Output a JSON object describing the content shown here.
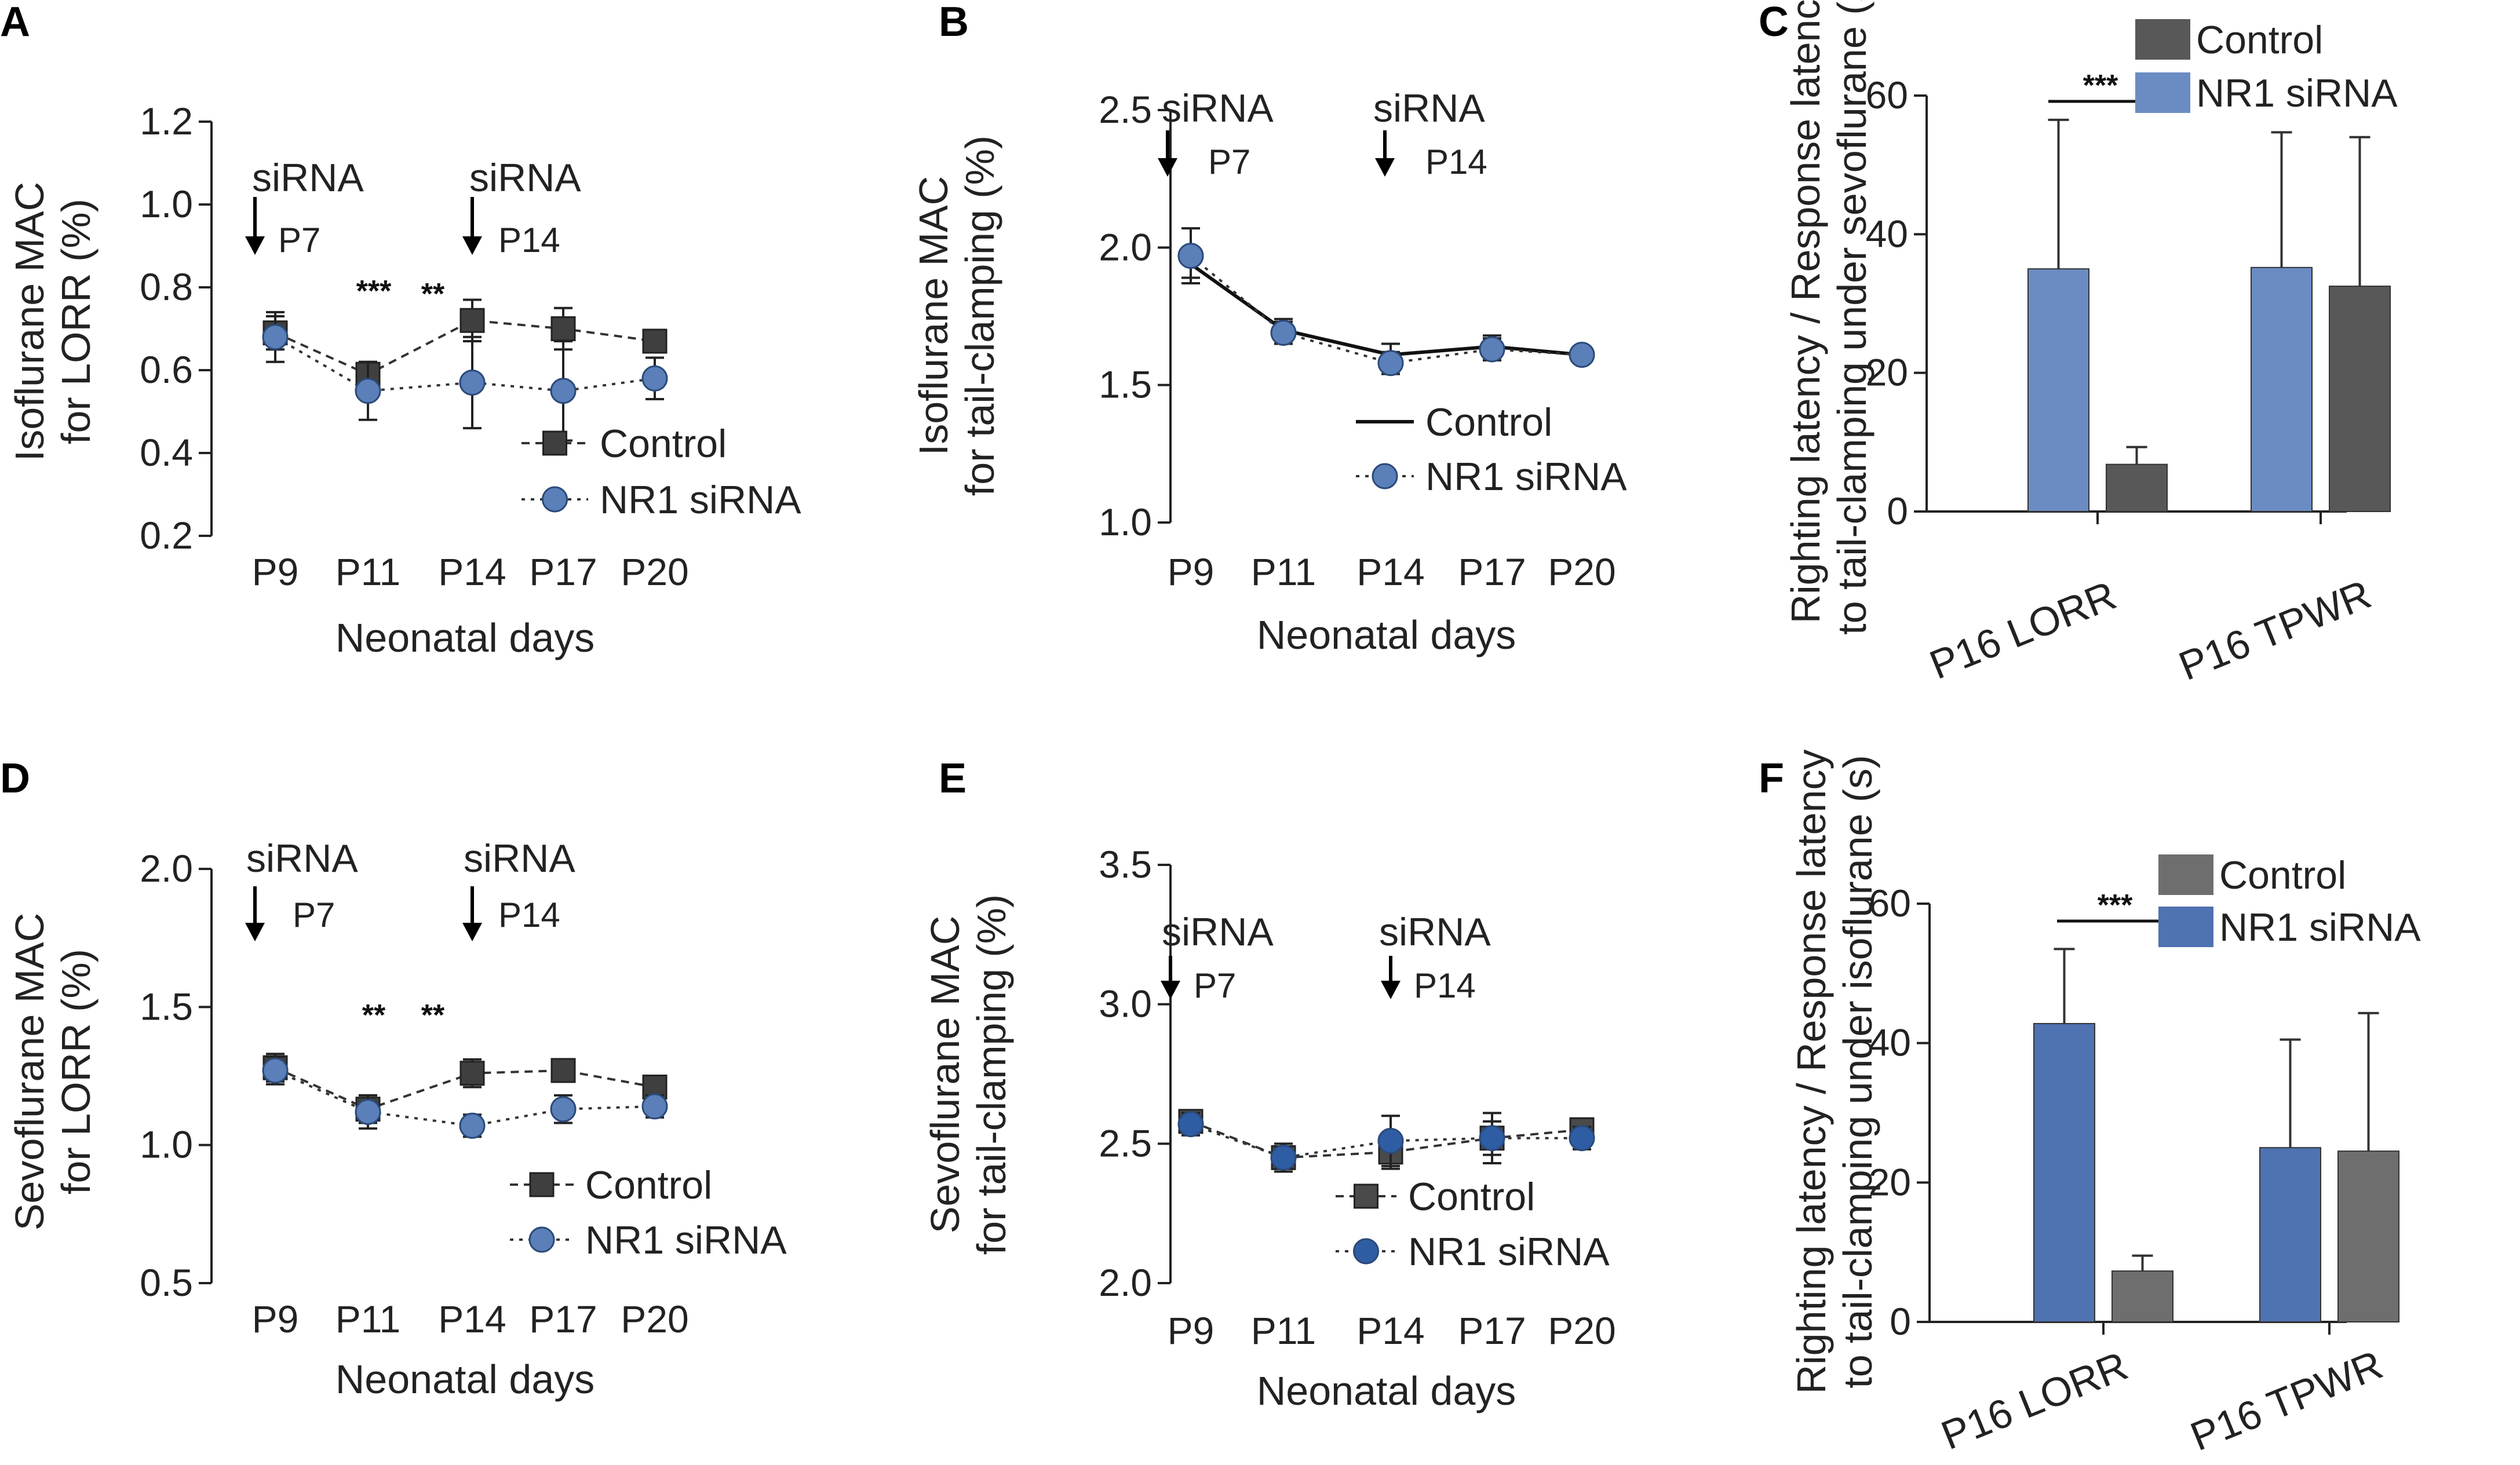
{
  "chart_data": [
    {
      "panel": "A",
      "type": "line",
      "ylabel": [
        "Isoflurane MAC",
        "for LORR (%)"
      ],
      "xlabel": "Neonatal days",
      "categories": [
        "P9",
        "P11",
        "P14",
        "P17",
        "P20"
      ],
      "ylim": [
        0.2,
        1.2
      ],
      "yticks": [
        0.2,
        0.4,
        0.6,
        0.8,
        1.0,
        1.2
      ],
      "ytick_labels": [
        "0.2",
        "0.4",
        "0.6",
        "0.8",
        "1.0",
        "1.2"
      ],
      "series": [
        {
          "name": "Control",
          "marker": "square",
          "color": "#3f3f3f",
          "line": "dashed",
          "values": [
            0.69,
            0.59,
            0.72,
            0.7,
            0.67
          ],
          "errors": [
            0.04,
            0.03,
            0.05,
            0.05,
            0.02
          ]
        },
        {
          "name": "NR1 siRNA",
          "marker": "circle",
          "color": "#5b7fb8",
          "line": "dotted",
          "values": [
            0.68,
            0.55,
            0.57,
            0.55,
            0.58
          ],
          "errors": [
            0.06,
            0.07,
            0.11,
            0.12,
            0.05
          ]
        }
      ],
      "annotations": [
        {
          "label": "siRNA",
          "day": "P7",
          "x": 8.0
        },
        {
          "label": "siRNA",
          "day": "P14",
          "x": 11.5
        }
      ],
      "significance": [
        {
          "x": 11.5,
          "text": "***"
        },
        {
          "x": 13.0,
          "text": "**"
        }
      ],
      "legend": [
        "Control",
        "NR1 siRNA"
      ],
      "legend_position": "bottom-right"
    },
    {
      "panel": "B",
      "type": "line",
      "ylabel": [
        "Isoflurane MAC",
        "for tail-clamping (%)"
      ],
      "xlabel": "Neonatal days",
      "categories": [
        "P9",
        "P11",
        "P14",
        "P17",
        "P20"
      ],
      "ylim": [
        1.0,
        2.5
      ],
      "yticks": [
        1.0,
        1.5,
        2.0,
        2.5
      ],
      "ytick_labels": [
        "1.0",
        "1.5",
        "2.0",
        "2.5"
      ],
      "series": [
        {
          "name": "Control",
          "marker": "none",
          "color": "#111111",
          "line": "solid",
          "values": [
            1.94,
            1.7,
            1.61,
            1.64,
            1.61
          ],
          "errors": [
            0.05,
            0.04,
            0.04,
            0.04,
            0.02
          ]
        },
        {
          "name": "NR1 siRNA",
          "marker": "circle",
          "color": "#5b7fb8",
          "line": "dotted",
          "values": [
            1.97,
            1.69,
            1.58,
            1.63,
            1.61
          ],
          "errors": [
            0.1,
            0.04,
            0.04,
            0.04,
            0.02
          ]
        }
      ],
      "annotations": [
        {
          "label": "siRNA",
          "day": "P7",
          "x": 8.0
        },
        {
          "label": "siRNA",
          "day": "P14",
          "x": 11.5
        }
      ],
      "significance": [],
      "legend": [
        "Control",
        "NR1 siRNA"
      ],
      "legend_position": "bottom-right"
    },
    {
      "panel": "C",
      "type": "bar",
      "ylabel": [
        "Righting latency / Response latency",
        "to tail-clamping under sevoflurane (s)"
      ],
      "categories": [
        "P16 LORR",
        "P16 TPWR"
      ],
      "ylim": [
        0,
        60
      ],
      "yticks": [
        0,
        20,
        40,
        60
      ],
      "ytick_labels": [
        "0",
        "20",
        "40",
        "60"
      ],
      "series": [
        {
          "name": "NR1 siRNA",
          "color": "#6a8cc2",
          "values": [
            35,
            35.2
          ],
          "errors": [
            21.5,
            19.5
          ]
        },
        {
          "name": "Control",
          "color": "#585858",
          "values": [
            6.8,
            32.5
          ],
          "errors": [
            2.5,
            21.5
          ]
        }
      ],
      "significance": [
        {
          "between": "P16 LORR",
          "text": "***"
        }
      ],
      "legend": [
        "Control",
        "NR1 siRNA"
      ],
      "legend_position": "top-right"
    },
    {
      "panel": "D",
      "type": "line",
      "ylabel": [
        "Sevoflurane MAC",
        "for LORR (%)"
      ],
      "xlabel": "Neonatal days",
      "categories": [
        "P9",
        "P11",
        "P14",
        "P17",
        "P20"
      ],
      "ylim": [
        0.5,
        2.0
      ],
      "yticks": [
        0.5,
        1.0,
        1.5,
        2.0
      ],
      "ytick_labels": [
        "0.5",
        "1.0",
        "1.5",
        "2.0"
      ],
      "series": [
        {
          "name": "Control",
          "marker": "square",
          "color": "#3f3f3f",
          "line": "dashed",
          "values": [
            1.28,
            1.13,
            1.26,
            1.27,
            1.21
          ],
          "errors": [
            0.05,
            0.05,
            0.05,
            0.03,
            0.03
          ]
        },
        {
          "name": "NR1 siRNA",
          "marker": "circle",
          "color": "#5b7fb8",
          "line": "dotted",
          "values": [
            1.27,
            1.12,
            1.07,
            1.13,
            1.14
          ],
          "errors": [
            0.05,
            0.06,
            0.04,
            0.05,
            0.04
          ]
        }
      ],
      "annotations": [
        {
          "label": "siRNA",
          "day": "P7",
          "x": 8.0
        },
        {
          "label": "siRNA",
          "day": "P14",
          "x": 11.5
        }
      ],
      "significance": [
        {
          "x": 11.5,
          "text": "**"
        },
        {
          "x": 13.0,
          "text": "**"
        }
      ],
      "legend": [
        "Control",
        "NR1 siRNA"
      ],
      "legend_position": "bottom-right"
    },
    {
      "panel": "E",
      "type": "line",
      "ylabel": [
        "Sevoflurane MAC",
        "for tail-clamping (%)"
      ],
      "xlabel": "Neonatal days",
      "categories": [
        "P9",
        "P11",
        "P14",
        "P17",
        "P20"
      ],
      "ylim": [
        2.0,
        3.5
      ],
      "yticks": [
        2.0,
        2.5,
        3.0,
        3.5
      ],
      "ytick_labels": [
        "2.0",
        "2.5",
        "3.0",
        "3.5"
      ],
      "series": [
        {
          "name": "Control",
          "marker": "square",
          "color": "#4a4a4a",
          "line": "dashed",
          "values": [
            2.58,
            2.45,
            2.47,
            2.52,
            2.55
          ],
          "errors": [
            0.04,
            0.05,
            0.06,
            0.06,
            0.03
          ]
        },
        {
          "name": "NR1 siRNA",
          "marker": "circle",
          "color": "#2f5da3",
          "line": "dotted",
          "values": [
            2.57,
            2.45,
            2.51,
            2.52,
            2.52
          ],
          "errors": [
            0.04,
            0.04,
            0.09,
            0.09,
            0.04
          ]
        }
      ],
      "annotations": [
        {
          "label": "siRNA",
          "day": "P7",
          "x": 8.0
        },
        {
          "label": "siRNA",
          "day": "P14",
          "x": 11.5
        }
      ],
      "significance": [],
      "legend": [
        "Control",
        "NR1 siRNA"
      ],
      "legend_position": "bottom-right"
    },
    {
      "panel": "F",
      "type": "bar",
      "ylabel": [
        "Righting latency / Response latency",
        "to tail-clamping under isoflurane (s)"
      ],
      "categories": [
        "P16 LORR",
        "P16 TPWR"
      ],
      "ylim": [
        0,
        60
      ],
      "yticks": [
        0,
        20,
        40,
        60
      ],
      "ytick_labels": [
        "0",
        "20",
        "40",
        "60"
      ],
      "series": [
        {
          "name": "NR1 siRNA",
          "color": "#4f72b0",
          "values": [
            42.8,
            25.0
          ],
          "errors": [
            10.7,
            15.5
          ]
        },
        {
          "name": "Control",
          "color": "#6e6e6e",
          "values": [
            7.3,
            24.5
          ],
          "errors": [
            2.2,
            19.8
          ]
        }
      ],
      "significance": [
        {
          "between": "P16 LORR",
          "text": "***"
        }
      ],
      "legend": [
        "Control",
        "NR1 siRNA"
      ],
      "legend_position": "top-right"
    }
  ]
}
